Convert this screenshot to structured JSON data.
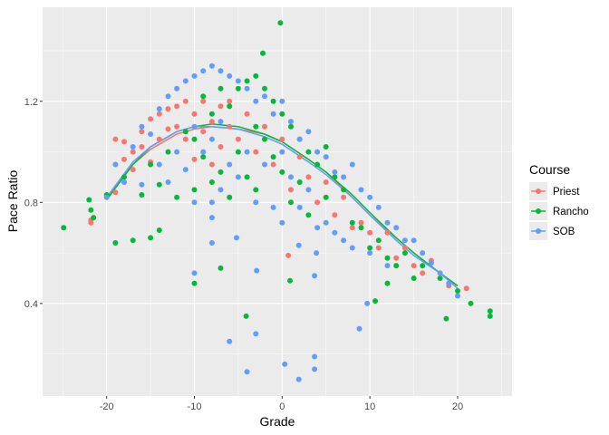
{
  "chart_data": {
    "type": "scatter",
    "title": "",
    "xlabel": "Grade",
    "ylabel": "Pace Ratio",
    "xlim": [
      -27.3,
      26.2
    ],
    "ylim": [
      0.034,
      1.572
    ],
    "x_ticks": [
      -20,
      -10,
      0,
      10,
      20
    ],
    "y_ticks": [
      0.4,
      0.8,
      1.2
    ],
    "x_tick_labels": [
      "-20",
      "-10",
      "0",
      "10",
      "20"
    ],
    "y_tick_labels": [
      "0.4",
      "0.8",
      "1.2"
    ],
    "grid": true,
    "legend": {
      "title": "Course",
      "position": "right"
    },
    "series": [
      {
        "name": "Priest",
        "color": "#F8766D",
        "points": [
          [
            -19,
            1.05
          ],
          [
            -18,
            1.04
          ],
          [
            -18,
            0.97
          ],
          [
            -17,
            1.0
          ],
          [
            -17,
            0.93
          ],
          [
            -16,
            1.08
          ],
          [
            -16,
            1.02
          ],
          [
            -15,
            1.13
          ],
          [
            -15,
            0.96
          ],
          [
            -14,
            1.15
          ],
          [
            -14,
            1.05
          ],
          [
            -13,
            1.17
          ],
          [
            -13,
            1.09
          ],
          [
            -12,
            1.18
          ],
          [
            -12,
            1.1
          ],
          [
            -11,
            1.2
          ],
          [
            -11,
            1.05
          ],
          [
            -10,
            1.15
          ],
          [
            -10,
            0.97
          ],
          [
            -9,
            1.2
          ],
          [
            -9,
            1.08
          ],
          [
            -8,
            1.12
          ],
          [
            -8,
            0.95
          ],
          [
            -7,
            1.18
          ],
          [
            -7,
            1.02
          ],
          [
            -6,
            1.2
          ],
          [
            -6,
            1.1
          ],
          [
            -5,
            1.05
          ],
          [
            -4,
            1.15
          ],
          [
            -3,
            1.0
          ],
          [
            -2,
            1.1
          ],
          [
            -1,
            0.95
          ],
          [
            0,
            1.05
          ],
          [
            1,
            0.85
          ],
          [
            2,
            0.98
          ],
          [
            3,
            0.9
          ],
          [
            4,
            0.8
          ],
          [
            5,
            0.88
          ],
          [
            6,
            0.75
          ],
          [
            7,
            0.82
          ],
          [
            8,
            0.7
          ],
          [
            9,
            0.72
          ],
          [
            10,
            0.68
          ],
          [
            11,
            0.62
          ],
          [
            12,
            0.68
          ],
          [
            13,
            0.58
          ],
          [
            14,
            0.62
          ],
          [
            15,
            0.55
          ],
          [
            16,
            0.52
          ],
          [
            17,
            0.57
          ],
          [
            18,
            0.5
          ],
          [
            19,
            0.47
          ],
          [
            21,
            0.46
          ],
          [
            -19,
            0.84
          ],
          [
            -21.8,
            0.73
          ],
          [
            -21.8,
            0.72
          ],
          [
            0.7,
            0.59
          ]
        ],
        "smooth": [
          [
            -20,
            0.82
          ],
          [
            -17,
            0.95
          ],
          [
            -15,
            1.01
          ],
          [
            -12,
            1.07
          ],
          [
            -10,
            1.09
          ],
          [
            -8,
            1.1
          ],
          [
            -5,
            1.09
          ],
          [
            -2,
            1.07
          ],
          [
            0,
            1.04
          ],
          [
            3,
            0.97
          ],
          [
            5,
            0.92
          ],
          [
            8,
            0.82
          ],
          [
            10,
            0.75
          ],
          [
            13,
            0.66
          ],
          [
            15,
            0.6
          ],
          [
            18,
            0.52
          ],
          [
            20,
            0.47
          ]
        ]
      },
      {
        "name": "Rancho",
        "color": "#00BA38",
        "points": [
          [
            -20,
            0.83
          ],
          [
            -18,
            0.9
          ],
          [
            -16,
            0.83
          ],
          [
            -15,
            0.95
          ],
          [
            -14,
            0.87
          ],
          [
            -13,
            1.0
          ],
          [
            -12,
            0.82
          ],
          [
            -11,
            1.08
          ],
          [
            -10,
            1.05
          ],
          [
            -10,
            0.85
          ],
          [
            -9,
            1.22
          ],
          [
            -9,
            0.98
          ],
          [
            -8,
            1.15
          ],
          [
            -8,
            0.88
          ],
          [
            -7,
            1.25
          ],
          [
            -7,
            0.92
          ],
          [
            -6,
            1.18
          ],
          [
            -6,
            0.82
          ],
          [
            -5,
            1.25
          ],
          [
            -5,
            1.0
          ],
          [
            -4,
            1.28
          ],
          [
            -4,
            0.9
          ],
          [
            -3,
            1.3
          ],
          [
            -3,
            1.1
          ],
          [
            -3,
            0.85
          ],
          [
            -2,
            1.25
          ],
          [
            -2,
            1.05
          ],
          [
            -1,
            1.2
          ],
          [
            -1,
            0.98
          ],
          [
            0,
            1.15
          ],
          [
            0,
            0.92
          ],
          [
            1,
            1.1
          ],
          [
            1,
            0.8
          ],
          [
            2,
            1.05
          ],
          [
            2,
            0.88
          ],
          [
            3,
            1.0
          ],
          [
            3,
            0.75
          ],
          [
            4,
            0.95
          ],
          [
            5,
            1.02
          ],
          [
            5,
            0.82
          ],
          [
            6,
            0.9
          ],
          [
            7,
            0.85
          ],
          [
            8,
            0.72
          ],
          [
            9,
            0.7
          ],
          [
            10,
            0.62
          ],
          [
            11,
            0.65
          ],
          [
            12,
            0.58
          ],
          [
            13,
            0.55
          ],
          [
            14,
            0.6
          ],
          [
            15,
            0.5
          ],
          [
            16,
            0.55
          ],
          [
            18,
            0.5
          ],
          [
            20,
            0.45
          ],
          [
            -24.9,
            0.7
          ],
          [
            -22,
            0.81
          ],
          [
            -21.8,
            0.77
          ],
          [
            -21.5,
            0.74
          ],
          [
            -19,
            0.64
          ],
          [
            -17,
            0.65
          ],
          [
            -15,
            0.66
          ],
          [
            -14,
            0.69
          ],
          [
            -10,
            0.48
          ],
          [
            -7,
            0.54
          ],
          [
            -0.2,
            1.51
          ],
          [
            -2.2,
            1.39
          ],
          [
            -4.1,
            0.35
          ],
          [
            0.9,
            0.49
          ],
          [
            10.6,
            0.41
          ],
          [
            12,
            0.48
          ],
          [
            18.7,
            0.34
          ],
          [
            21.5,
            0.4
          ],
          [
            23.7,
            0.37
          ],
          [
            23.7,
            0.35
          ]
        ],
        "smooth": [
          [
            -20,
            0.81
          ],
          [
            -17,
            0.95
          ],
          [
            -15,
            1.02
          ],
          [
            -12,
            1.08
          ],
          [
            -10,
            1.1
          ],
          [
            -8,
            1.11
          ],
          [
            -5,
            1.1
          ],
          [
            -2,
            1.07
          ],
          [
            0,
            1.04
          ],
          [
            3,
            0.97
          ],
          [
            5,
            0.92
          ],
          [
            8,
            0.83
          ],
          [
            10,
            0.76
          ],
          [
            13,
            0.66
          ],
          [
            15,
            0.6
          ],
          [
            18,
            0.52
          ],
          [
            20,
            0.47
          ]
        ]
      },
      {
        "name": "SOB",
        "color": "#619CFF",
        "points": [
          [
            -20,
            0.82
          ],
          [
            -19,
            0.95
          ],
          [
            -18,
            0.88
          ],
          [
            -17,
            1.02
          ],
          [
            -16,
            1.1
          ],
          [
            -16,
            0.87
          ],
          [
            -15,
            1.07
          ],
          [
            -14,
            1.17
          ],
          [
            -14,
            0.95
          ],
          [
            -13,
            1.22
          ],
          [
            -13,
            0.88
          ],
          [
            -12,
            1.25
          ],
          [
            -12,
            1.0
          ],
          [
            -11,
            1.28
          ],
          [
            -11,
            0.93
          ],
          [
            -10,
            1.3
          ],
          [
            -10,
            1.1
          ],
          [
            -10,
            0.8
          ],
          [
            -9,
            1.32
          ],
          [
            -9,
            1.0
          ],
          [
            -8,
            1.34
          ],
          [
            -8,
            1.05
          ],
          [
            -8,
            0.8
          ],
          [
            -7,
            1.32
          ],
          [
            -7,
            1.12
          ],
          [
            -7,
            0.85
          ],
          [
            -6,
            1.3
          ],
          [
            -6,
            0.95
          ],
          [
            -5,
            1.28
          ],
          [
            -5,
            0.9
          ],
          [
            -4,
            1.25
          ],
          [
            -4,
            1.0
          ],
          [
            -3,
            1.2
          ],
          [
            -3,
            0.8
          ],
          [
            -2,
            1.22
          ],
          [
            -2,
            0.95
          ],
          [
            -1,
            1.15
          ],
          [
            -1,
            0.78
          ],
          [
            0,
            1.2
          ],
          [
            0,
            1.0
          ],
          [
            0,
            0.72
          ],
          [
            1,
            1.12
          ],
          [
            1,
            0.9
          ],
          [
            2,
            1.05
          ],
          [
            2,
            0.78
          ],
          [
            3,
            1.08
          ],
          [
            3,
            0.85
          ],
          [
            4,
            1.0
          ],
          [
            4,
            0.7
          ],
          [
            5,
            0.98
          ],
          [
            5,
            0.72
          ],
          [
            6,
            0.92
          ],
          [
            6,
            0.68
          ],
          [
            7,
            0.9
          ],
          [
            7,
            0.65
          ],
          [
            8,
            0.95
          ],
          [
            8,
            0.62
          ],
          [
            9,
            0.85
          ],
          [
            10,
            0.82
          ],
          [
            10,
            0.6
          ],
          [
            11,
            0.78
          ],
          [
            12,
            0.72
          ],
          [
            12,
            0.55
          ],
          [
            13,
            0.7
          ],
          [
            14,
            0.65
          ],
          [
            15,
            0.65
          ],
          [
            16,
            0.6
          ],
          [
            17,
            0.56
          ],
          [
            18,
            0.52
          ],
          [
            19,
            0.48
          ],
          [
            20,
            0.43
          ],
          [
            -10,
            0.52
          ],
          [
            -8,
            0.64
          ],
          [
            -8,
            0.74
          ],
          [
            -5.2,
            0.66
          ],
          [
            -6,
            0.25
          ],
          [
            -3,
            0.28
          ],
          [
            -2.9,
            0.53
          ],
          [
            -4,
            0.13
          ],
          [
            0.3,
            0.16
          ],
          [
            1.9,
            0.1
          ],
          [
            3.7,
            0.19
          ],
          [
            3.7,
            0.14
          ],
          [
            3.7,
            0.51
          ],
          [
            8.8,
            0.3
          ],
          [
            9.7,
            0.4
          ],
          [
            1.9,
            0.63
          ],
          [
            3.9,
            0.6
          ]
        ],
        "smooth": [
          [
            -20,
            0.82
          ],
          [
            -17,
            0.96
          ],
          [
            -15,
            1.02
          ],
          [
            -12,
            1.08
          ],
          [
            -10,
            1.1
          ],
          [
            -8,
            1.1
          ],
          [
            -5,
            1.09
          ],
          [
            -2,
            1.06
          ],
          [
            0,
            1.03
          ],
          [
            3,
            0.96
          ],
          [
            5,
            0.91
          ],
          [
            8,
            0.82
          ],
          [
            10,
            0.75
          ],
          [
            13,
            0.65
          ],
          [
            15,
            0.59
          ],
          [
            18,
            0.52
          ],
          [
            20,
            0.46
          ]
        ]
      }
    ]
  }
}
